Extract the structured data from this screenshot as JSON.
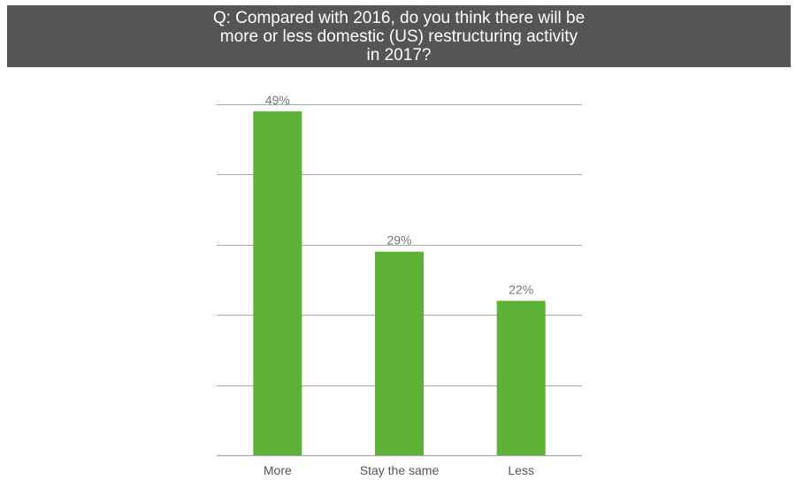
{
  "chart_data": {
    "type": "bar",
    "title_lines": [
      "Q: Compared with 2016, do you think there will be",
      "more or less domestic (US) restructuring activity",
      "in 2017?"
    ],
    "categories": [
      "More",
      "Stay the same",
      "Less"
    ],
    "values": [
      49,
      29,
      22
    ],
    "data_labels": [
      "49%",
      "29%",
      "22%"
    ],
    "ylim": [
      0,
      50
    ],
    "grid": true,
    "legend": "none",
    "colors": {
      "bar": "#5db236",
      "grid": "#a6a6a6",
      "title_bg": "#555555",
      "title_text": "#ffffff"
    }
  }
}
